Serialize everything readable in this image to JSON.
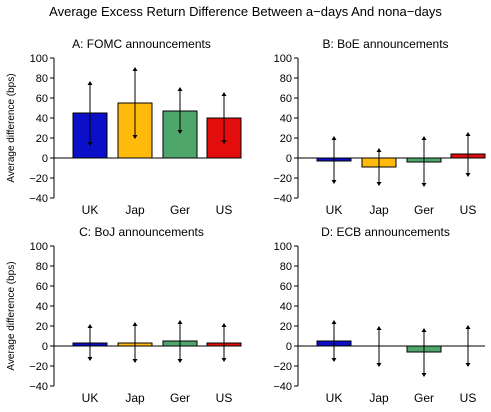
{
  "title": "Average Excess Return Difference Between a−days And nona−days",
  "colors": {
    "UK": "#0b10c8",
    "Jap": "#ffba0b",
    "Ger": "#4fa66b",
    "US": "#e20e0e"
  },
  "chart_data": [
    {
      "type": "bar",
      "title": "A: FOMC announcements",
      "ylabel": "Average difference (bps)",
      "categories": [
        "UK",
        "Jap",
        "Ger",
        "US"
      ],
      "values": [
        45,
        55,
        47,
        40
      ],
      "errors_low": [
        13,
        20,
        25,
        15
      ],
      "errors_high": [
        76,
        90,
        70,
        65
      ],
      "ylim": [
        -40,
        100
      ],
      "yticks": [
        "100",
        "80",
        "60",
        "40",
        "20",
        "0",
        "−20",
        "−40"
      ]
    },
    {
      "type": "bar",
      "title": "B: BoE announcements",
      "ylabel": "",
      "categories": [
        "UK",
        "Jap",
        "Ger",
        "US"
      ],
      "values": [
        -3,
        -9,
        -4,
        4
      ],
      "errors_low": [
        -25,
        -27,
        -28,
        -18
      ],
      "errors_high": [
        21,
        9,
        21,
        25
      ],
      "ylim": [
        -40,
        100
      ],
      "yticks": [
        "100",
        "80",
        "60",
        "40",
        "20",
        "0",
        "−20",
        "−40"
      ]
    },
    {
      "type": "bar",
      "title": "C: BoJ announcements",
      "ylabel": "Average difference (bps)",
      "categories": [
        "UK",
        "Jap",
        "Ger",
        "US"
      ],
      "values": [
        3,
        3,
        5,
        3
      ],
      "errors_low": [
        -14,
        -16,
        -16,
        -15
      ],
      "errors_high": [
        21,
        23,
        25,
        22
      ],
      "ylim": [
        -40,
        100
      ],
      "yticks": [
        "100",
        "80",
        "60",
        "40",
        "20",
        "0",
        "−20",
        "−40"
      ]
    },
    {
      "type": "bar",
      "title": "D: ECB announcements",
      "ylabel": "",
      "categories": [
        "UK",
        "Jap",
        "Ger",
        "US"
      ],
      "values": [
        5,
        0,
        -6,
        0
      ],
      "errors_low": [
        -15,
        -20,
        -30,
        -20
      ],
      "errors_high": [
        25,
        19,
        17,
        20
      ],
      "ylim": [
        -40,
        100
      ],
      "yticks": [
        "100",
        "80",
        "60",
        "40",
        "20",
        "0",
        "−20",
        "−40"
      ]
    }
  ]
}
